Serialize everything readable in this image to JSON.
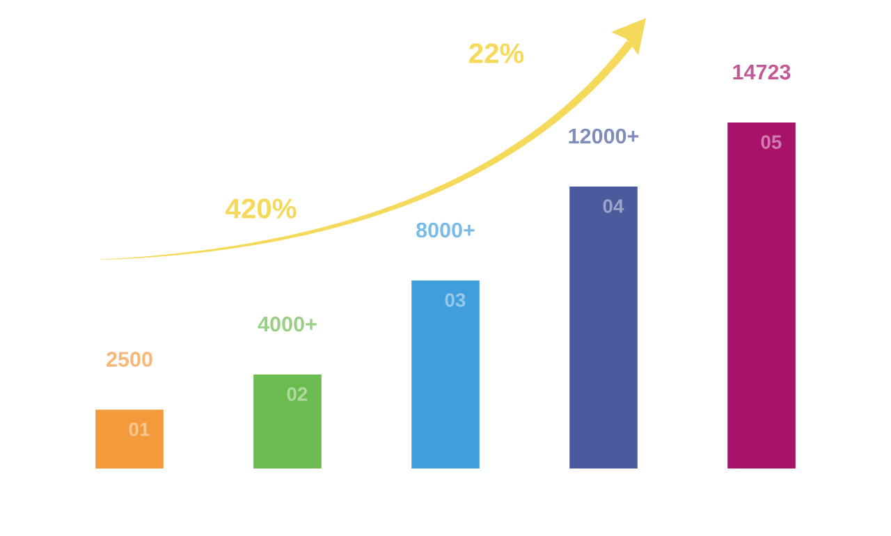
{
  "chart_data": {
    "type": "bar",
    "categories": [
      "01",
      "02",
      "03",
      "04",
      "05"
    ],
    "values": [
      2500,
      4000,
      8000,
      12000,
      14723
    ],
    "value_labels": [
      "2500",
      "4000+",
      "8000+",
      "12000+",
      "14723"
    ],
    "colors": [
      "#f29a3c",
      "#6cbb50",
      "#3f9edb",
      "#4a5a9c",
      "#a8126a"
    ],
    "annotations": [
      "420%",
      "22%"
    ]
  }
}
